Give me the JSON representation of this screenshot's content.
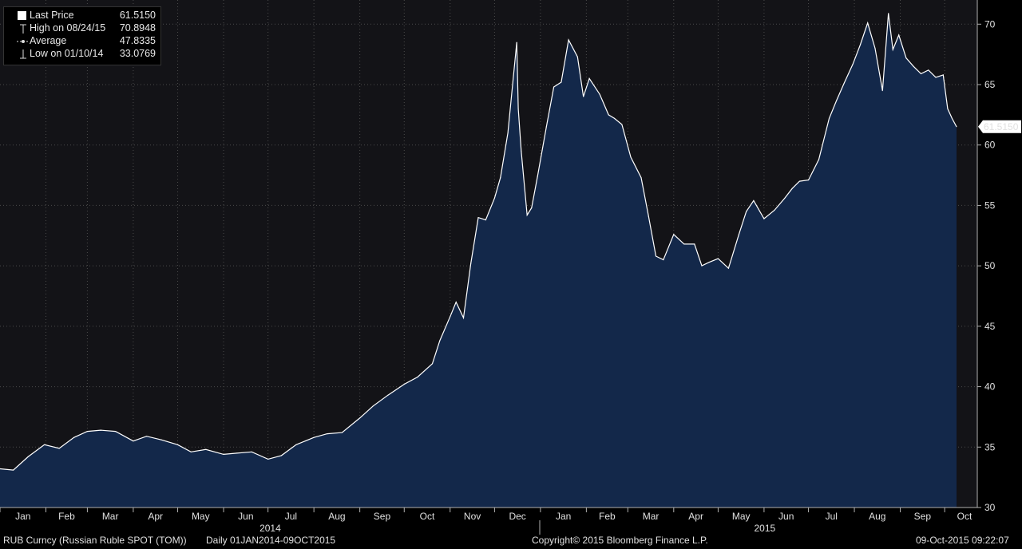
{
  "legend": {
    "items": [
      {
        "label": "Last Price",
        "value": "61.5150",
        "marker": "filled-square-icon"
      },
      {
        "label": "High on 08/24/15",
        "value": "70.8948",
        "marker": "high-marker-icon"
      },
      {
        "label": "Average",
        "value": "47.8335",
        "marker": "average-marker-icon"
      },
      {
        "label": "Low on 01/10/14",
        "value": "33.0769",
        "marker": "low-marker-icon"
      }
    ]
  },
  "footer": {
    "security": "RUB Curncy (Russian Ruble SPOT (TOM))",
    "period": "Daily 01JAN2014-09OCT2015",
    "copyright": "Copyright© 2015 Bloomberg Finance L.P.",
    "timestamp": "09-Oct-2015 09:22:07"
  },
  "chart_data": {
    "type": "area",
    "ylim": [
      30,
      72
    ],
    "yticks": [
      30,
      35,
      40,
      45,
      50,
      55,
      60,
      65,
      70
    ],
    "last_price_label": "61.5150",
    "colors": {
      "fill": "#13284a",
      "line": "#ffffff",
      "background": "#131317",
      "grid": "#4a4a4a"
    },
    "months": [
      "Jan",
      "Feb",
      "Mar",
      "Apr",
      "May",
      "Jun",
      "Jul",
      "Aug",
      "Sep",
      "Oct",
      "Nov",
      "Dec",
      "Jan",
      "Feb",
      "Mar",
      "Apr",
      "May",
      "Jun",
      "Jul",
      "Aug",
      "Sep",
      "Oct"
    ],
    "years": [
      "2014",
      "2015"
    ],
    "x": [
      "2014-01-01",
      "2014-01-10",
      "2014-01-20",
      "2014-01-31",
      "2014-02-10",
      "2014-02-20",
      "2014-03-01",
      "2014-03-10",
      "2014-03-20",
      "2014-04-01",
      "2014-04-10",
      "2014-04-20",
      "2014-05-01",
      "2014-05-10",
      "2014-05-20",
      "2014-06-01",
      "2014-06-10",
      "2014-06-20",
      "2014-07-01",
      "2014-07-10",
      "2014-07-20",
      "2014-08-01",
      "2014-08-10",
      "2014-08-20",
      "2014-09-01",
      "2014-09-10",
      "2014-09-20",
      "2014-10-01",
      "2014-10-10",
      "2014-10-20",
      "2014-10-25",
      "2014-11-01",
      "2014-11-05",
      "2014-11-10",
      "2014-11-15",
      "2014-11-20",
      "2014-11-25",
      "2014-12-01",
      "2014-12-05",
      "2014-12-10",
      "2014-12-16",
      "2014-12-17",
      "2014-12-19",
      "2014-12-23",
      "2014-12-26",
      "2014-12-30",
      "2015-01-05",
      "2015-01-10",
      "2015-01-15",
      "2015-01-20",
      "2015-01-26",
      "2015-01-30",
      "2015-02-03",
      "2015-02-10",
      "2015-02-16",
      "2015-02-20",
      "2015-02-25",
      "2015-03-03",
      "2015-03-10",
      "2015-03-15",
      "2015-03-20",
      "2015-03-25",
      "2015-04-01",
      "2015-04-08",
      "2015-04-15",
      "2015-04-20",
      "2015-04-25",
      "2015-05-01",
      "2015-05-08",
      "2015-05-15",
      "2015-05-20",
      "2015-05-25",
      "2015-06-01",
      "2015-06-08",
      "2015-06-15",
      "2015-06-20",
      "2015-06-25",
      "2015-07-01",
      "2015-07-08",
      "2015-07-15",
      "2015-07-20",
      "2015-07-25",
      "2015-07-31",
      "2015-08-05",
      "2015-08-10",
      "2015-08-15",
      "2015-08-20",
      "2015-08-24",
      "2015-08-27",
      "2015-08-31",
      "2015-09-05",
      "2015-09-10",
      "2015-09-15",
      "2015-09-20",
      "2015-09-25",
      "2015-09-30",
      "2015-10-03",
      "2015-10-06",
      "2015-10-09"
    ],
    "values": [
      33.2,
      33.1,
      34.2,
      35.2,
      34.9,
      35.8,
      36.3,
      36.4,
      36.3,
      35.5,
      35.9,
      35.6,
      35.2,
      34.6,
      34.8,
      34.4,
      34.5,
      34.6,
      34.0,
      34.3,
      35.2,
      35.8,
      36.1,
      36.2,
      37.4,
      38.4,
      39.3,
      40.2,
      40.8,
      41.9,
      43.8,
      45.8,
      47.0,
      45.7,
      50.2,
      54.0,
      53.8,
      55.6,
      57.3,
      61.0,
      68.5,
      63.0,
      59.5,
      54.2,
      54.8,
      57.4,
      61.5,
      64.8,
      65.2,
      68.7,
      67.3,
      64.0,
      65.5,
      64.2,
      62.5,
      62.2,
      61.7,
      59.0,
      57.3,
      54.1,
      50.8,
      50.5,
      52.6,
      51.8,
      51.8,
      50.0,
      50.3,
      50.6,
      49.8,
      52.6,
      54.5,
      55.4,
      53.9,
      54.6,
      55.6,
      56.4,
      57.0,
      57.1,
      58.8,
      62.2,
      63.7,
      65.1,
      66.7,
      68.3,
      70.1,
      68.0,
      64.5,
      70.8948,
      67.9,
      69.1,
      67.2,
      66.5,
      65.9,
      66.2,
      65.6,
      65.8,
      63.0,
      62.2,
      61.515
    ]
  }
}
